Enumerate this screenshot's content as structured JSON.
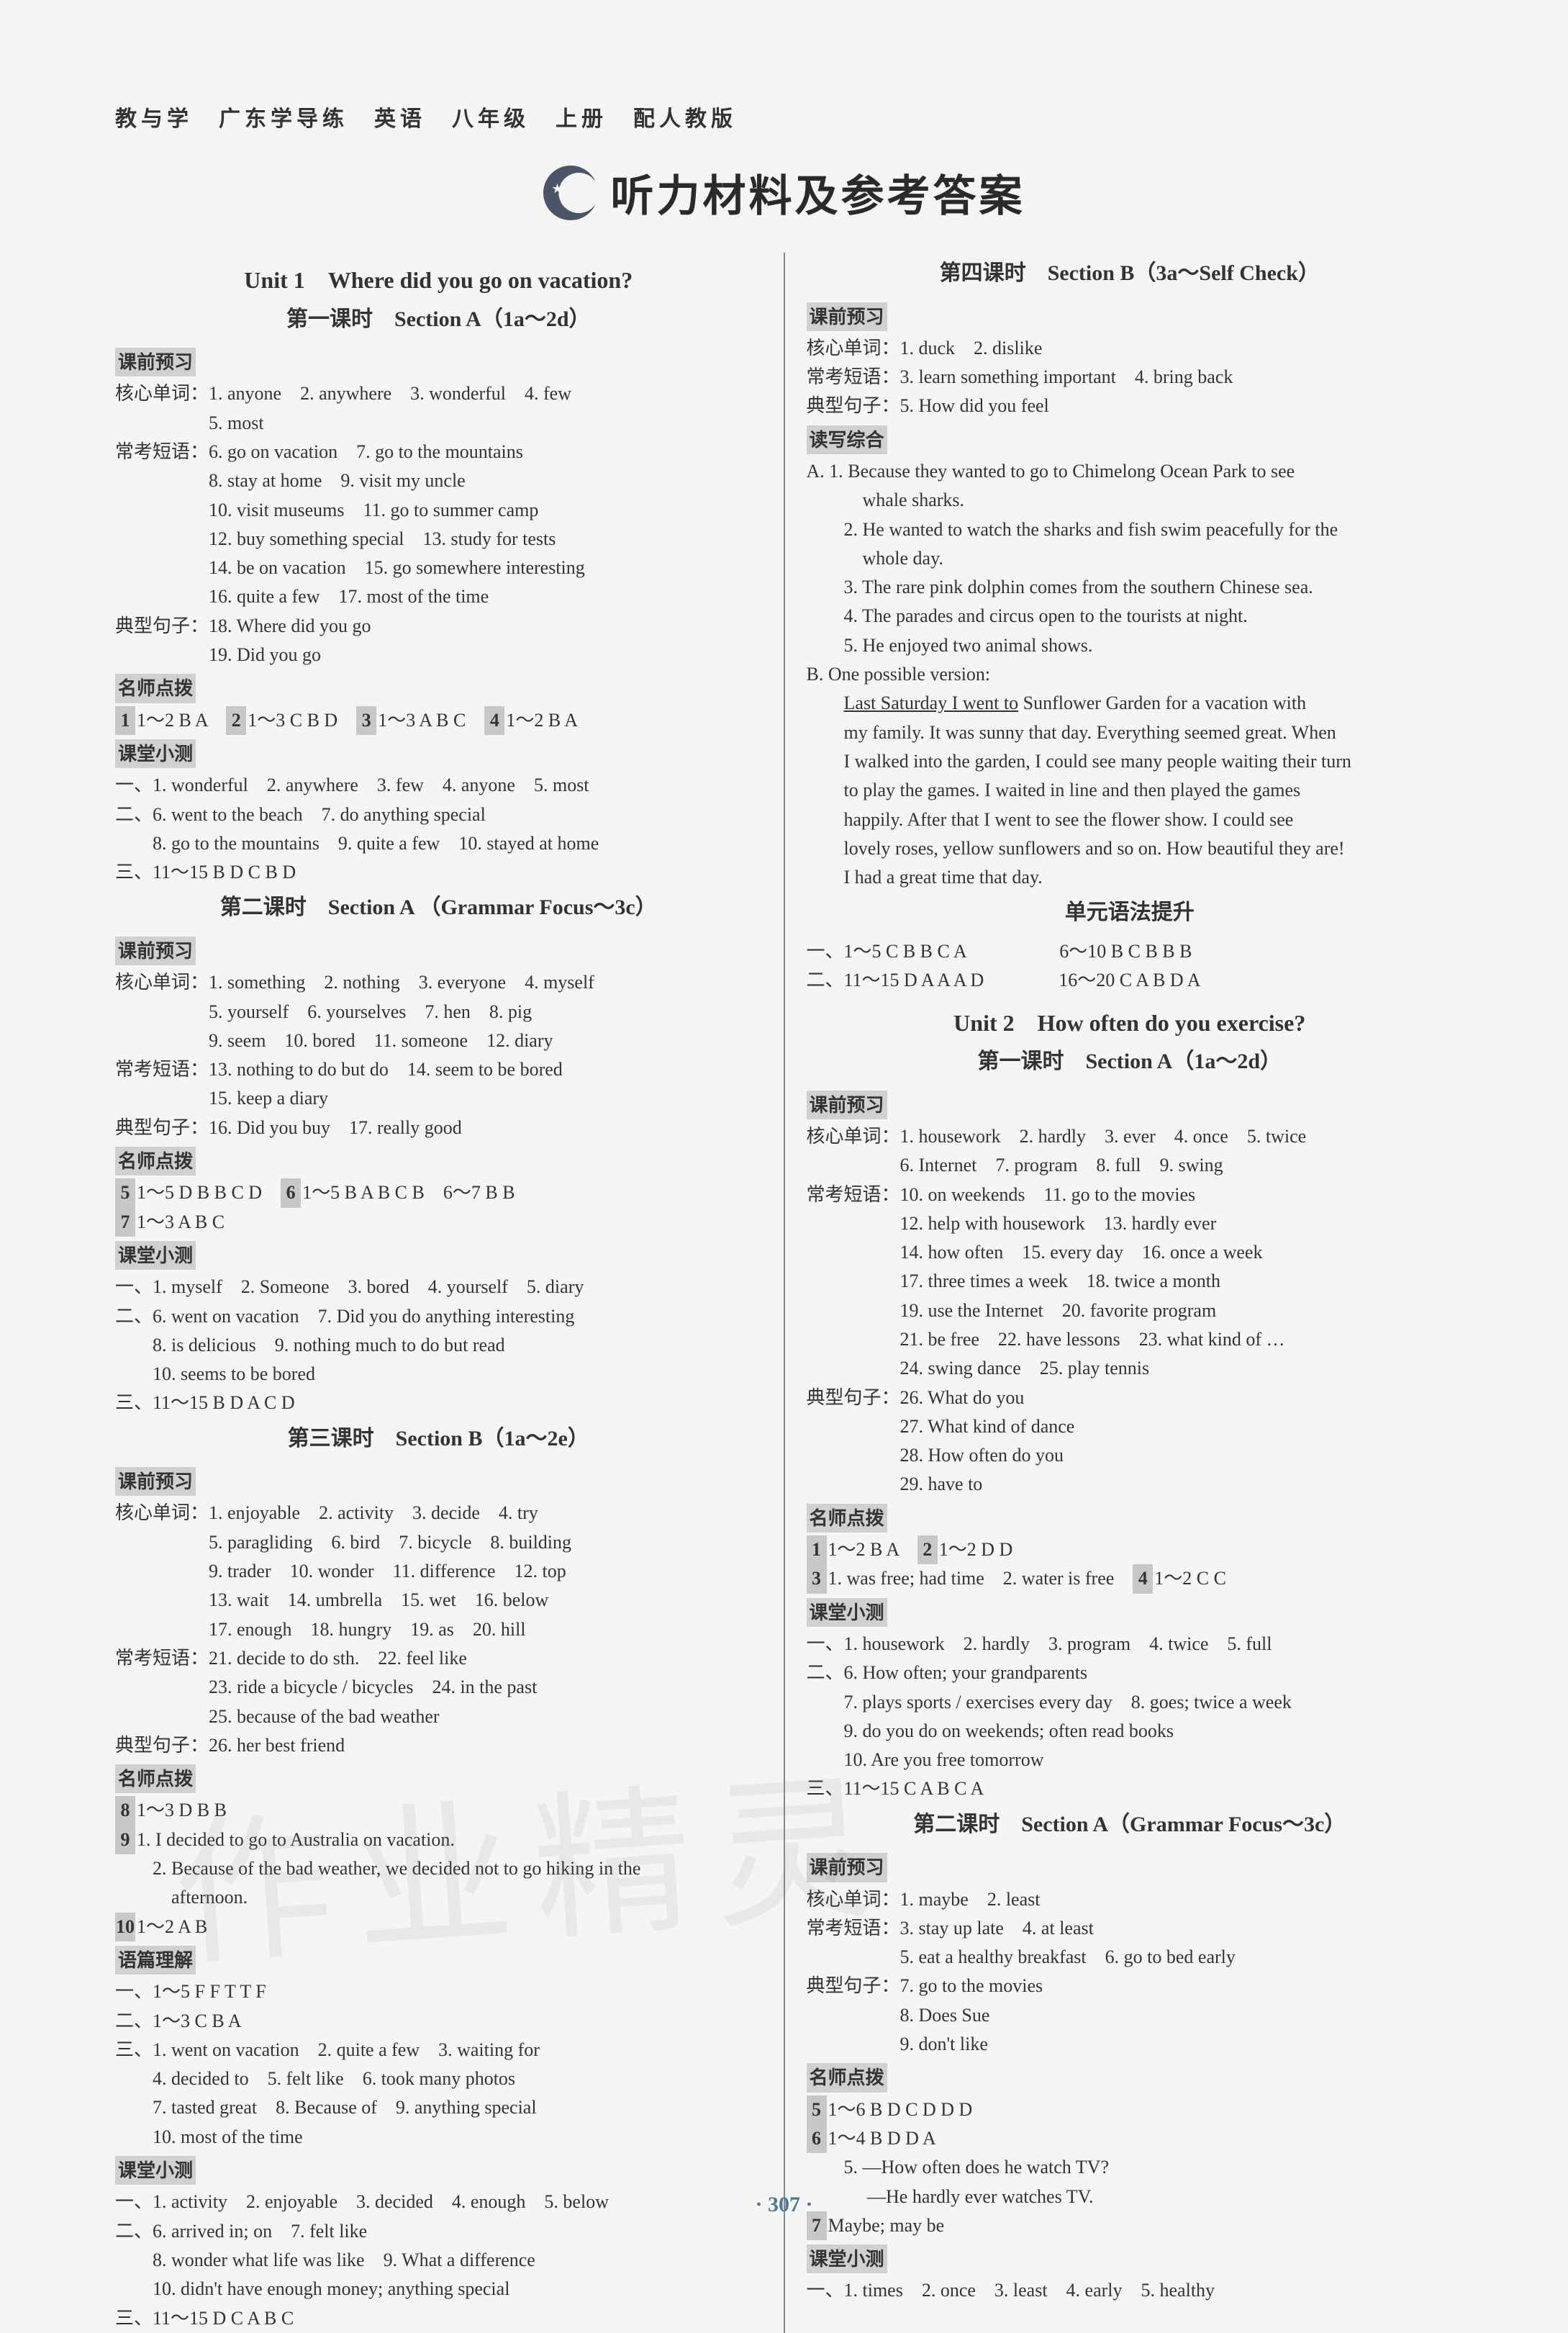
{
  "book_header": "教与学　广东学导练　英语　八年级　上册　配人教版",
  "main_title": "听力材料及参考答案",
  "page_num": "· 307 ·",
  "watermark": "作业精灵",
  "labels": {
    "hexin": "核心单词：",
    "changkao": "常考短语：",
    "dianxing": "典型句子：",
    "keqian": "课前预习",
    "mingshi": "名师点拨",
    "ketang": "课堂小测",
    "yupian": "语篇理解",
    "duxie": "读写综合"
  },
  "L": {
    "u1_title": "Unit 1　Where did you go on vacation?",
    "l1_title": "第一课时　Section A（1a～2d）",
    "l1_hx": [
      "1. anyone　2. anywhere　3. wonderful　4. few",
      "5. most"
    ],
    "l1_ck": [
      "6. go on vacation　7. go to the mountains",
      "8. stay at home　9. visit my uncle",
      "10. visit museums　11. go to summer camp",
      "12. buy something special　13. study for tests",
      "14. be on vacation　15. go somewhere interesting",
      "16. quite a few　17. most of the time"
    ],
    "l1_dx": [
      "18. Where did you go",
      "19. Did you go"
    ],
    "l1_ms": [
      {
        "n": "1",
        "t": "1～2 B A　"
      },
      {
        "n": "2",
        "t": "1～3 C B D　"
      },
      {
        "n": "3",
        "t": "1～3 A B C　"
      },
      {
        "n": "4",
        "t": "1～2 B A"
      }
    ],
    "l1_kt": [
      "一、1. wonderful　2. anywhere　3. few　4. anyone　5. most",
      "二、6. went to the beach　7. do anything special",
      "　　8. go to the mountains　9. quite a few　10. stayed at home",
      "三、11～15 B D C B D"
    ],
    "l2_title": "第二课时　Section A （Grammar Focus～3c）",
    "l2_hx": [
      "1. something　2. nothing　3. everyone　4. myself",
      "5. yourself　6. yourselves　7. hen　8. pig",
      "9. seem　10. bored　11. someone　12. diary"
    ],
    "l2_ck": [
      "13. nothing to do but do　14. seem to be bored",
      "15. keep a diary"
    ],
    "l2_dx": [
      "16. Did you buy　17. really good"
    ],
    "l2_ms": [
      {
        "n": "5",
        "t": "1～5 D B B C D　"
      },
      {
        "n": "6",
        "t": "1～5 B A B C B　6～7 B B"
      },
      {
        "n": "7",
        "t": "1～3 A B C"
      }
    ],
    "l2_kt": [
      "一、1. myself　2. Someone　3. bored　4. yourself　5. diary",
      "二、6. went on vacation　7. Did you do anything interesting",
      "　　8. is delicious　9. nothing much to do but read",
      "　　10. seems to be bored",
      "三、11～15 B D A C D"
    ],
    "l3_title": "第三课时　Section B（1a～2e）",
    "l3_hx": [
      "1. enjoyable　2. activity　3. decide　4. try",
      "5. paragliding　6. bird　7. bicycle　8. building",
      "9. trader　10. wonder　11. difference　12. top",
      "13. wait　14. umbrella　15. wet　16. below",
      "17. enough　18. hungry　19. as　20. hill"
    ],
    "l3_ck": [
      "21. decide to do sth.　22. feel like",
      "23. ride a bicycle / bicycles　24. in the past",
      "25. because of the bad weather"
    ],
    "l3_dx": [
      "26. her best friend"
    ],
    "l3_ms": [
      {
        "type": "box",
        "n": "8",
        "t": "1～3 D B B"
      },
      {
        "type": "box",
        "n": "9",
        "t": "1. I decided to go to Australia on vacation."
      },
      {
        "type": "plain",
        "t": "　　2. Because of the bad weather, we decided not to go hiking in the"
      },
      {
        "type": "plain",
        "t": "　　　afternoon."
      },
      {
        "type": "box",
        "n": "10",
        "t": "1～2 A B"
      }
    ],
    "l3_yp": [
      "一、1～5 F F T T F",
      "二、1～3 C B A",
      "三、1. went on vacation　2. quite a few　3. waiting for",
      "　　4. decided to　5. felt like　6. took many photos",
      "　　7. tasted great　8. Because of　9. anything special",
      "　　10. most of the time"
    ],
    "l3_kt": [
      "一、1. activity　2. enjoyable　3. decided　4. enough　5. below",
      "二、6. arrived in; on　7. felt like",
      "　　8. wonder what life was like　9. What a difference",
      "　　10. didn't have enough money; anything special",
      "三、11～15 D C A B C"
    ]
  },
  "R": {
    "l4_title": "第四课时　Section B（3a～Self Check）",
    "l4_hx": [
      "1. duck　2. dislike"
    ],
    "l4_ck": [
      "3. learn something important　4. bring back"
    ],
    "l4_dx": [
      "5. How did you feel"
    ],
    "l4_dx_A": [
      "A. 1. Because they wanted to go to Chimelong Ocean Park to see",
      "　　　whale sharks.",
      "　　2. He wanted to watch the sharks and fish swim peacefully for the",
      "　　　whole day.",
      "　　3. The rare pink dolphin comes from the southern Chinese sea.",
      "　　4. The parades and circus open to the tourists at night.",
      "　　5. He enjoyed two animal shows."
    ],
    "l4_dx_B_head": "B. One possible version:",
    "l4_dx_B_u": "Last Saturday I went to",
    "l4_dx_B": [
      " Sunflower Garden for a vacation with",
      "my family. It was sunny that day. Everything seemed great. When",
      "I walked into the garden, I could see many people waiting their turn",
      "to play the games. I waited in line and then played the games",
      "happily. After that I went to see the flower show. I could see",
      "lovely roses, yellow sunflowers and so on. How beautiful they are!",
      "I had a great time that day."
    ],
    "gr_title": "单元语法提升",
    "gr": [
      "一、1～5 C B B C A　　　　　6～10 B C B B B",
      "二、11～15 D A A A D　　　　16～20 C A B D A"
    ],
    "u2_title": "Unit 2　How often do you exercise?",
    "u2l1_title": "第一课时　Section A（1a～2d）",
    "u2l1_hx": [
      "1. housework　2. hardly　3. ever　4. once　5. twice",
      "6. Internet　7. program　8. full　9. swing"
    ],
    "u2l1_ck": [
      "10. on weekends　11. go to the movies",
      "12. help with housework　13. hardly ever",
      "14. how often　15. every day　16. once a week",
      "17. three times a week　18. twice a month",
      "19. use the Internet　20. favorite program",
      "21. be free　22. have lessons　23. what kind of …",
      "24. swing dance　25. play tennis"
    ],
    "u2l1_dx": [
      "26. What do you",
      "27. What kind of dance",
      "28. How often do you",
      "29. have to"
    ],
    "u2l1_ms": [
      {
        "n": "1",
        "t": "1～2 B A　"
      },
      {
        "n": "2",
        "t": "1～2 D D"
      },
      {
        "n": "3",
        "t": "1. was free; had time　2. water is free　"
      },
      {
        "n": "4",
        "t": "1～2 C C"
      }
    ],
    "u2l1_kt": [
      "一、1. housework　2. hardly　3. program　4. twice　5. full",
      "二、6. How often; your grandparents",
      "　　7. plays sports / exercises every day　8. goes; twice a week",
      "　　9. do you do on weekends; often read books",
      "　　10. Are you free tomorrow",
      "三、11～15 C A B C A"
    ],
    "u2l2_title": "第二课时　Section A（Grammar Focus～3c）",
    "u2l2_hx": [
      "1. maybe　2. least"
    ],
    "u2l2_ck": [
      "3. stay up late　4. at least",
      "5. eat a healthy breakfast　6. go to bed early"
    ],
    "u2l2_dx": [
      "7. go to the movies",
      "8. Does Sue",
      "9. don't like"
    ],
    "u2l2_ms": [
      {
        "type": "box",
        "n": "5",
        "t": "1～6 B D C D D D"
      },
      {
        "type": "box",
        "n": "6",
        "t": "1～4 B D D A"
      },
      {
        "type": "plain",
        "t": "　　5. —How often does he watch TV?"
      },
      {
        "type": "plain",
        "t": "　　　 —He hardly ever watches TV."
      },
      {
        "type": "box",
        "n": "7",
        "t": "Maybe; may be"
      }
    ],
    "u2l2_kt": [
      "一、1. times　2. once　3. least　4. early　5. healthy"
    ]
  }
}
